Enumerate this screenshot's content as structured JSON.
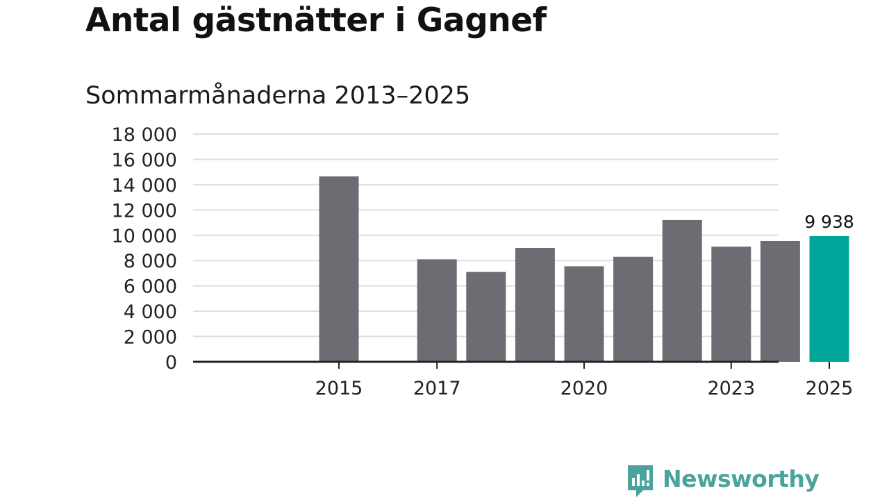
{
  "title": "Antal gästnätter i Gagnef",
  "subtitle": "Sommarmånaderna 2013–2025",
  "colors": {
    "bar": "#6d6c72",
    "highlight": "#00a69a",
    "grid": "#dddddd",
    "axis": "#222222",
    "brand": "#4aa39c"
  },
  "brand": {
    "name": "Newsworthy",
    "icon": "newsworthy-logo-icon"
  },
  "chart_data": {
    "type": "bar",
    "categories": [
      "2013",
      "2014",
      "2015",
      "2016",
      "2017",
      "2018",
      "2019",
      "2020",
      "2021",
      "2022",
      "2023",
      "2024",
      "2025"
    ],
    "values": [
      null,
      null,
      14650,
      null,
      8100,
      7100,
      9000,
      7550,
      8300,
      11200,
      9100,
      9550,
      9938
    ],
    "highlight_index": 12,
    "data_labels": [
      {
        "category": "2025",
        "text": "9 938"
      }
    ],
    "x_tick_labels": [
      "2015",
      "2017",
      "2020",
      "2023",
      "2025"
    ],
    "y_ticks": [
      0,
      2000,
      4000,
      6000,
      8000,
      10000,
      12000,
      14000,
      16000,
      18000
    ],
    "y_tick_labels": [
      "0",
      "2 000",
      "4 000",
      "6 000",
      "8 000",
      "10 000",
      "12 000",
      "14 000",
      "16 000",
      "18 000"
    ],
    "ylim": [
      0,
      18000
    ],
    "xlabel": "",
    "ylabel": "",
    "grid": true,
    "legend": "none"
  }
}
